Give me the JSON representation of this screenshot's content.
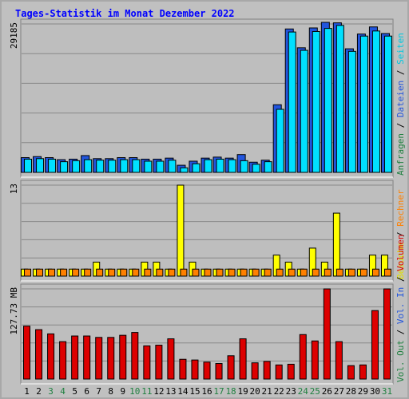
{
  "title": "Tages-Statistik im Monat Dezember 2022",
  "colors": {
    "background": "#c0c0c0",
    "frame": "#a8a8a8",
    "title": "#0000ff",
    "panel_bg": "#bebebe",
    "grid": "#888888",
    "anfragen": "#2255dd",
    "dateien": "#00aacc",
    "seiten": "#00e0ff",
    "besuche": "#ffff00",
    "rechner": "#ff8000",
    "volumen": "#dd0000",
    "weekday_label": "#000000",
    "weekend_label": "#208040"
  },
  "right_labels": {
    "panel1": [
      {
        "text": "Anfragen",
        "color": "#208040"
      },
      {
        "text": "Dateien",
        "color": "#2255dd"
      },
      {
        "text": "Seiten",
        "color": "#00c8e0"
      }
    ],
    "panel2": [
      {
        "text": "Besuche",
        "color": "#e0e000"
      },
      {
        "text": "Rechner",
        "color": "#ff8000"
      }
    ],
    "panel3": [
      {
        "text": "Vol. Out",
        "color": "#208040"
      },
      {
        "text": "Vol. In",
        "color": "#2255dd"
      },
      {
        "text": "Volumen",
        "color": "#dd0000"
      }
    ]
  },
  "chart_data": [
    {
      "type": "bar",
      "panel": "requests",
      "ymax_label": "29185",
      "ylim": [
        0,
        29185
      ],
      "categories": [
        "1",
        "2",
        "3",
        "4",
        "5",
        "6",
        "7",
        "8",
        "9",
        "10",
        "11",
        "12",
        "13",
        "14",
        "15",
        "16",
        "17",
        "18",
        "19",
        "20",
        "21",
        "22",
        "23",
        "24",
        "25",
        "26",
        "27",
        "28",
        "29",
        "30",
        "31"
      ],
      "series": [
        {
          "name": "Anfragen",
          "values": [
            2900,
            3100,
            2900,
            2500,
            2600,
            3300,
            2700,
            2700,
            2900,
            2900,
            2600,
            2600,
            2800,
            1400,
            2200,
            2800,
            3000,
            2800,
            3500,
            2000,
            2400,
            13300,
            28200,
            24500,
            28400,
            29500,
            29400,
            24300,
            27200,
            28600,
            27300
          ]
        },
        {
          "name": "Dateien",
          "values": [
            2600,
            2700,
            2600,
            2100,
            2300,
            2500,
            2400,
            2400,
            2500,
            2500,
            2200,
            2200,
            2400,
            900,
            1700,
            2500,
            2600,
            2500,
            2300,
            1600,
            2100,
            12400,
            27600,
            24000,
            27700,
            28300,
            28900,
            23800,
            26800,
            27800,
            26800
          ]
        },
        {
          "name": "Seiten",
          "values": [
            0,
            0,
            0,
            0,
            0,
            0,
            0,
            0,
            0,
            0,
            0,
            0,
            0,
            0,
            0,
            0,
            0,
            0,
            0,
            0,
            0,
            0,
            0,
            0,
            0,
            0,
            0,
            0,
            0,
            0,
            0
          ]
        }
      ]
    },
    {
      "type": "bar",
      "panel": "visits",
      "ymax_label": "13",
      "ylim": [
        0,
        13
      ],
      "categories": [
        "1",
        "2",
        "3",
        "4",
        "5",
        "6",
        "7",
        "8",
        "9",
        "10",
        "11",
        "12",
        "13",
        "14",
        "15",
        "16",
        "17",
        "18",
        "19",
        "20",
        "21",
        "22",
        "23",
        "24",
        "25",
        "26",
        "27",
        "28",
        "29",
        "30",
        "31"
      ],
      "series": [
        {
          "name": "Besuche",
          "values": [
            1,
            1,
            1,
            1,
            1,
            1,
            2,
            1,
            1,
            1,
            2,
            2,
            1,
            13,
            2,
            1,
            1,
            1,
            1,
            1,
            1,
            3,
            2,
            1,
            4,
            2,
            9,
            1,
            1,
            3,
            3
          ]
        },
        {
          "name": "Rechner",
          "values": [
            1,
            1,
            1,
            1,
            1,
            1,
            1,
            1,
            1,
            1,
            1,
            1,
            1,
            1,
            1,
            1,
            1,
            1,
            1,
            1,
            1,
            1,
            1,
            1,
            1,
            1,
            1,
            1,
            1,
            1,
            1
          ]
        }
      ]
    },
    {
      "type": "bar",
      "panel": "volume",
      "ymax_label": "127.73 MB",
      "ylim": [
        0,
        127.73
      ],
      "categories": [
        "1",
        "2",
        "3",
        "4",
        "5",
        "6",
        "7",
        "8",
        "9",
        "10",
        "11",
        "12",
        "13",
        "14",
        "15",
        "16",
        "17",
        "18",
        "19",
        "20",
        "21",
        "22",
        "23",
        "24",
        "25",
        "26",
        "27",
        "28",
        "29",
        "30",
        "31"
      ],
      "series": [
        {
          "name": "Volumen",
          "values": [
            75,
            70,
            64,
            53,
            61,
            61,
            59,
            59,
            62,
            66,
            47,
            48,
            57,
            28,
            27,
            24,
            22,
            33,
            57,
            23,
            25,
            20,
            21,
            63,
            54,
            127.7,
            53,
            19,
            20,
            97,
            127.7
          ]
        }
      ]
    }
  ],
  "day_labels": [
    "1",
    "2",
    "3",
    "4",
    "5",
    "6",
    "7",
    "8",
    "9",
    "10",
    "11",
    "12",
    "13",
    "14",
    "15",
    "16",
    "17",
    "18",
    "19",
    "20",
    "21",
    "22",
    "23",
    "24",
    "25",
    "26",
    "27",
    "28",
    "29",
    "30",
    "31"
  ],
  "weekend_days": [
    "3",
    "4",
    "10",
    "11",
    "17",
    "18",
    "24",
    "25",
    "31"
  ]
}
